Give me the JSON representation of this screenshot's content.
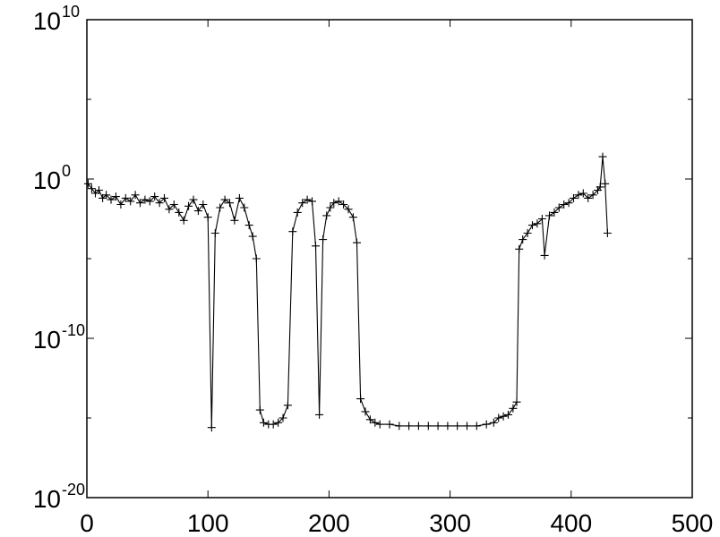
{
  "chart_data": {
    "type": "line",
    "title": "",
    "xlabel": "",
    "ylabel": "",
    "xlim": [
      0,
      500
    ],
    "ylim_log10": [
      -20,
      10
    ],
    "y_scale": "log",
    "grid": false,
    "legend": "none",
    "marker": "+",
    "line_color": "#000000",
    "x_ticks": [
      {
        "value": 0,
        "label": "0"
      },
      {
        "value": 100,
        "label": "100"
      },
      {
        "value": 200,
        "label": "200"
      },
      {
        "value": 300,
        "label": "300"
      },
      {
        "value": 400,
        "label": "400"
      },
      {
        "value": 500,
        "label": "500"
      }
    ],
    "y_ticks": [
      {
        "value_log10": -20,
        "base": "10",
        "exponent": "-20"
      },
      {
        "value_log10": -10,
        "base": "10",
        "exponent": "-10"
      },
      {
        "value_log10": 0,
        "base": "10",
        "exponent": "0"
      },
      {
        "value_log10": 10,
        "base": "10",
        "exponent": "10"
      }
    ],
    "series": [
      {
        "x": [
          1,
          4,
          7,
          10,
          13,
          16,
          20,
          24,
          28,
          32,
          36,
          40,
          44,
          48,
          52,
          56,
          60,
          64,
          68,
          72,
          76,
          80,
          84,
          88,
          92,
          96,
          100,
          103,
          106,
          110,
          114,
          118,
          122,
          126,
          130,
          134,
          137,
          140,
          143,
          146,
          150,
          154,
          158,
          162,
          166,
          170,
          174,
          178,
          182,
          186,
          189,
          192,
          195,
          198,
          201,
          204,
          208,
          212,
          216,
          220,
          223,
          226,
          230,
          234,
          238,
          242,
          250,
          258,
          266,
          274,
          282,
          290,
          298,
          306,
          314,
          322,
          330,
          336,
          340,
          344,
          348,
          352,
          355,
          357,
          360,
          364,
          368,
          372,
          376,
          378,
          382,
          386,
          390,
          394,
          398,
          402,
          406,
          410,
          414,
          418,
          422,
          424,
          426,
          428,
          430
        ],
        "log10_y": [
          -0.3,
          -0.6,
          -0.9,
          -0.7,
          -1.2,
          -1.0,
          -1.3,
          -1.1,
          -1.6,
          -1.2,
          -1.4,
          -1.0,
          -1.5,
          -1.3,
          -1.4,
          -1.1,
          -1.5,
          -1.2,
          -1.9,
          -1.6,
          -2.1,
          -2.6,
          -1.7,
          -1.3,
          -2.0,
          -1.6,
          -2.4,
          -15.6,
          -3.4,
          -1.8,
          -1.3,
          -1.5,
          -2.6,
          -1.2,
          -1.8,
          -2.9,
          -3.6,
          -5.0,
          -14.5,
          -15.3,
          -15.4,
          -15.4,
          -15.3,
          -15.0,
          -14.2,
          -3.3,
          -2.1,
          -1.5,
          -1.3,
          -1.4,
          -4.2,
          -14.8,
          -3.8,
          -2.3,
          -1.8,
          -1.5,
          -1.4,
          -1.6,
          -1.9,
          -2.4,
          -4.0,
          -13.8,
          -14.6,
          -15.1,
          -15.3,
          -15.4,
          -15.4,
          -15.5,
          -15.5,
          -15.5,
          -15.5,
          -15.5,
          -15.5,
          -15.5,
          -15.5,
          -15.5,
          -15.4,
          -15.3,
          -15.0,
          -14.9,
          -14.8,
          -14.4,
          -14.0,
          -4.4,
          -3.8,
          -3.4,
          -2.9,
          -2.8,
          -2.5,
          -4.8,
          -2.3,
          -2.1,
          -1.8,
          -1.6,
          -1.5,
          -1.2,
          -1.0,
          -0.9,
          -1.2,
          -1.0,
          -0.7,
          -0.5,
          1.4,
          -0.3,
          -3.4
        ]
      }
    ]
  }
}
